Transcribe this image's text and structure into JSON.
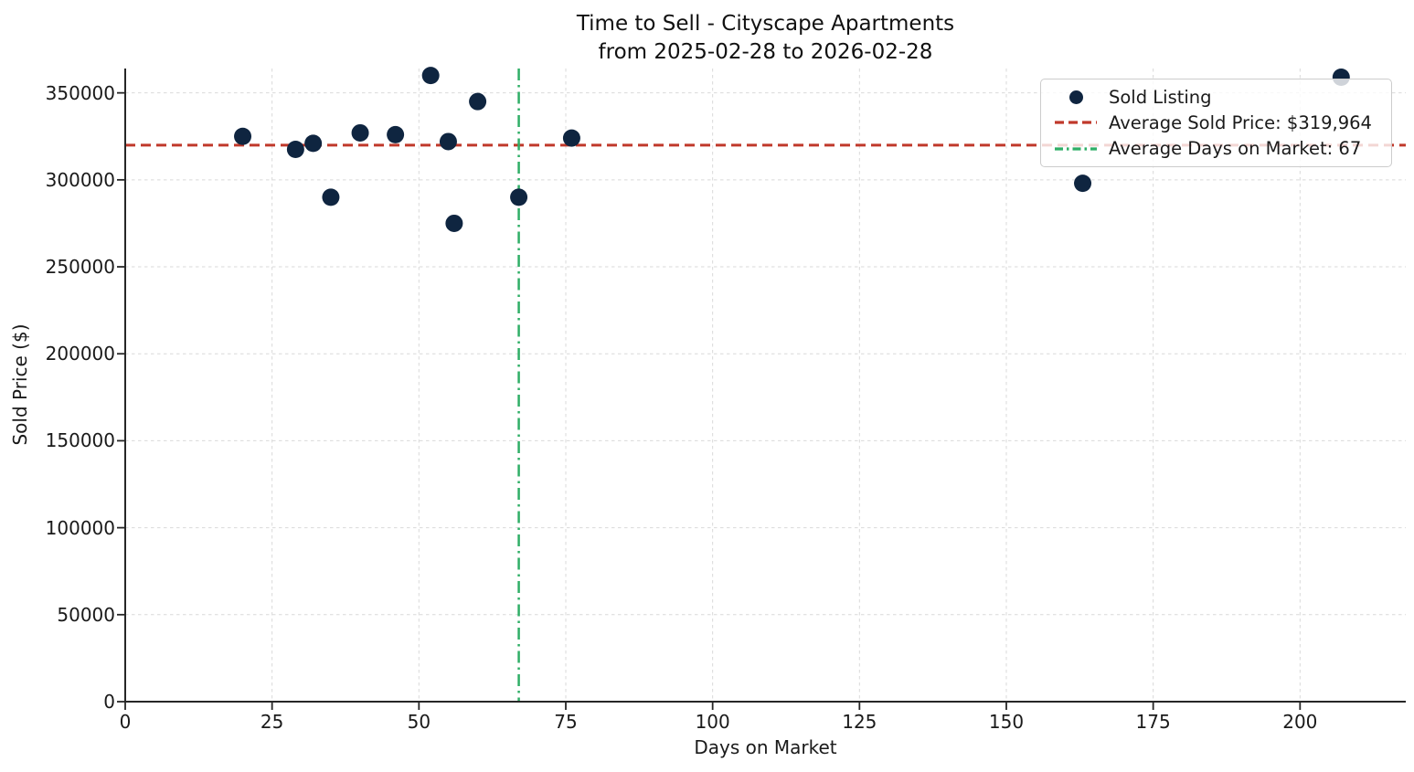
{
  "title": {
    "line1": "Time to Sell - Cityscape Apartments",
    "line2": "from 2025-02-28 to 2026-02-28"
  },
  "axes": {
    "xlabel": "Days on Market",
    "ylabel": "Sold Price ($)"
  },
  "legend": {
    "items": [
      {
        "label": "Sold Listing",
        "marker": "dot",
        "color": "#0f2540"
      },
      {
        "label": "Average Sold Price: $319,964",
        "marker": "dashed-line",
        "color": "#c0392b"
      },
      {
        "label": "Average Days on Market: 67",
        "marker": "dashdot-line",
        "color": "#2fae66"
      }
    ]
  },
  "colors": {
    "scatter": "#0f2540",
    "avg_price_line": "#c0392b",
    "avg_days_line": "#2fae66",
    "grid": "#d9d9d9",
    "spine": "#262626",
    "background": "#ffffff"
  },
  "chart_data": {
    "type": "scatter",
    "title": "Time to Sell - Cityscape Apartments",
    "subtitle": "from 2025-02-28 to 2026-02-28",
    "xlabel": "Days on Market",
    "ylabel": "Sold Price ($)",
    "xlim": [
      0,
      218
    ],
    "ylim": [
      0,
      364000
    ],
    "x_ticks": [
      0,
      25,
      50,
      75,
      100,
      125,
      150,
      175,
      200
    ],
    "y_ticks": [
      0,
      50000,
      100000,
      150000,
      200000,
      250000,
      300000,
      350000
    ],
    "grid": true,
    "legend_position": "upper right",
    "series": [
      {
        "name": "Sold Listing",
        "type": "scatter",
        "color": "#0f2540",
        "x_field": "days_on_market",
        "y_field": "sold_price",
        "points": [
          [
            20,
            325000
          ],
          [
            29,
            317500
          ],
          [
            32,
            321000
          ],
          [
            35,
            290000
          ],
          [
            40,
            327000
          ],
          [
            46,
            326000
          ],
          [
            52,
            360000
          ],
          [
            55,
            322000
          ],
          [
            56,
            275000
          ],
          [
            60,
            345000
          ],
          [
            67,
            290000
          ],
          [
            76,
            324000
          ],
          [
            163,
            298000
          ],
          [
            207,
            359000
          ]
        ]
      },
      {
        "name": "Average Sold Price: $319,964",
        "type": "hline",
        "value": 319964,
        "color": "#c0392b",
        "linestyle": "dashed"
      },
      {
        "name": "Average Days on Market: 67",
        "type": "vline",
        "value": 67,
        "color": "#2fae66",
        "linestyle": "dashdot"
      }
    ]
  }
}
